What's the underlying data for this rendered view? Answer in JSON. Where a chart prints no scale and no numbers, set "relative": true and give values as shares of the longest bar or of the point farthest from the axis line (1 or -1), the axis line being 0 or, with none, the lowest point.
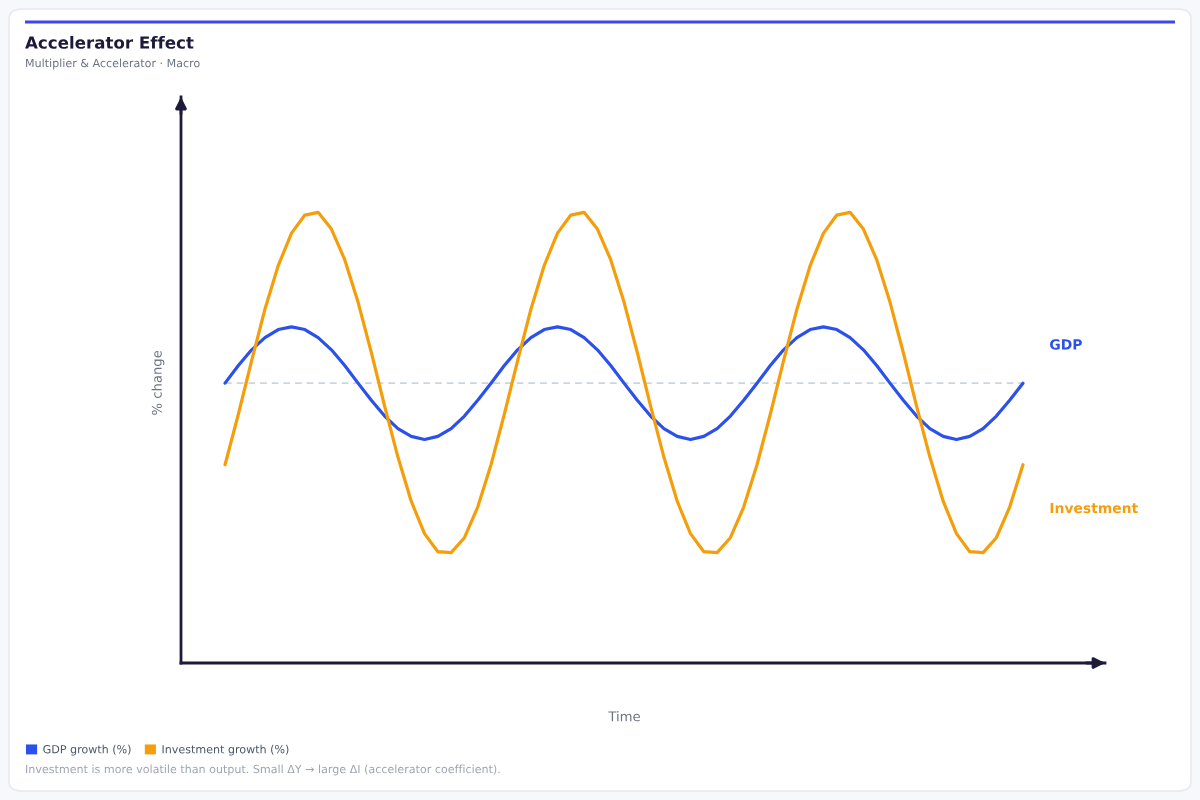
{
  "chart_data": {
    "type": "line",
    "title": "Accelerator Effect",
    "subtitle": "Multiplier & Accelerator · Macro",
    "xlabel": "Time",
    "ylabel": "% change",
    "relative": true,
    "tick_labels": false,
    "legend": "bottom",
    "line_style": "solid",
    "categories": [
      null,
      null,
      null,
      null,
      null,
      null,
      null,
      null,
      null,
      null,
      null,
      null,
      null,
      null,
      null,
      null,
      null,
      null,
      null,
      null,
      null,
      null,
      null,
      null,
      null,
      null,
      null,
      null,
      null,
      null,
      null,
      null,
      null,
      null,
      null,
      null,
      null,
      null,
      null,
      null,
      null,
      null,
      null,
      null,
      null,
      null,
      null,
      null,
      null,
      null,
      null,
      null,
      null,
      null,
      null,
      null,
      null,
      null,
      null,
      null,
      null
    ],
    "series": [
      {
        "name": "GDP growth (%)",
        "color": "#2b50ec",
        "values": [
          0.621,
          0.66,
          0.695,
          0.722,
          0.74,
          0.746,
          0.74,
          0.722,
          0.695,
          0.66,
          0.621,
          0.583,
          0.548,
          0.52,
          0.503,
          0.496,
          0.503,
          0.52,
          0.548,
          0.583,
          0.621,
          0.66,
          0.695,
          0.722,
          0.74,
          0.746,
          0.74,
          0.722,
          0.695,
          0.66,
          0.621,
          0.583,
          0.548,
          0.52,
          0.503,
          0.496,
          0.503,
          0.52,
          0.548,
          0.583,
          0.621,
          0.66,
          0.695,
          0.722,
          0.74,
          0.746,
          0.74,
          0.722,
          0.695,
          0.66,
          0.621,
          0.583,
          0.548,
          0.52,
          0.503,
          0.496,
          0.503,
          0.52,
          0.548,
          0.583,
          0.621
        ]
      },
      {
        "name": "Investment growth (%)",
        "color": "#f59e0b",
        "values": [
          0.44,
          0.552,
          0.671,
          0.785,
          0.882,
          0.954,
          0.994,
          1.0,
          0.963,
          0.895,
          0.801,
          0.689,
          0.57,
          0.457,
          0.359,
          0.287,
          0.247,
          0.245,
          0.278,
          0.346,
          0.44,
          0.552,
          0.671,
          0.785,
          0.882,
          0.954,
          0.994,
          1.0,
          0.963,
          0.895,
          0.801,
          0.689,
          0.57,
          0.457,
          0.359,
          0.287,
          0.247,
          0.245,
          0.278,
          0.346,
          0.44,
          0.552,
          0.671,
          0.785,
          0.882,
          0.954,
          0.994,
          1.0,
          0.963,
          0.895,
          0.801,
          0.689,
          0.57,
          0.457,
          0.359,
          0.287,
          0.247,
          0.245,
          0.278,
          0.346,
          0.44
        ]
      }
    ],
    "ref_lines": [
      {
        "axis": "y",
        "value": 0.621,
        "color": "#cbd5e1",
        "line_style": "dashed"
      }
    ],
    "annotations": [
      "GDP",
      "Investment",
      "Investment is more volatile than output. Small ΔY → large ΔI (accelerator coefficient)."
    ]
  }
}
